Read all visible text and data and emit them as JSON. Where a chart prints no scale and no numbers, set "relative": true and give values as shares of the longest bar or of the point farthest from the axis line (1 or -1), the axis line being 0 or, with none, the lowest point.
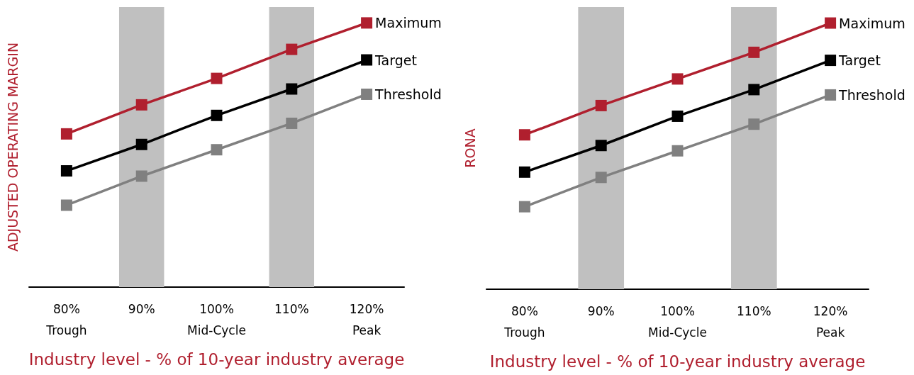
{
  "chart_data": [
    {
      "type": "line",
      "relative": true,
      "ylabel": "ADJUSTED OPERATING MARGIN",
      "xlabel": "Industry level - % of 10-year industry average",
      "x": [
        80,
        90,
        100,
        110,
        120
      ],
      "xlim": [
        75,
        125
      ],
      "xticks": [
        {
          "value": 80,
          "label": "80%\nTrough"
        },
        {
          "value": 90,
          "label": "90%"
        },
        {
          "value": 100,
          "label": "100%\nMid-Cycle"
        },
        {
          "value": 110,
          "label": "110%"
        },
        {
          "value": 120,
          "label": "120%\nPeak"
        }
      ],
      "marker": "square",
      "line_style": "solid",
      "legend": false,
      "grid": false,
      "series": [
        {
          "name": "Maximum",
          "color": "#b01f2e",
          "values": [
            0.58,
            0.69,
            0.79,
            0.9,
            1.0
          ]
        },
        {
          "name": "Target",
          "color": "#000000",
          "values": [
            0.44,
            0.54,
            0.65,
            0.75,
            0.86
          ]
        },
        {
          "name": "Threshold",
          "color": "#808080",
          "values": [
            0.31,
            0.42,
            0.52,
            0.62,
            0.73
          ]
        }
      ],
      "bands": [
        {
          "axis": "x",
          "from": 87,
          "to": 93,
          "color": "#c0c0c0"
        },
        {
          "axis": "x",
          "from": 107,
          "to": 113,
          "color": "#c0c0c0"
        }
      ]
    },
    {
      "type": "line",
      "relative": true,
      "ylabel": "RONA",
      "xlabel": "Industry level - % of 10-year industry average",
      "x": [
        80,
        90,
        100,
        110,
        120
      ],
      "xlim": [
        75,
        125
      ],
      "xticks": [
        {
          "value": 80,
          "label": "80%\nTrough"
        },
        {
          "value": 90,
          "label": "90%"
        },
        {
          "value": 100,
          "label": "100%\nMid-Cycle"
        },
        {
          "value": 110,
          "label": "110%"
        },
        {
          "value": 120,
          "label": "120%\nPeak"
        }
      ],
      "marker": "square",
      "line_style": "solid",
      "legend": false,
      "grid": false,
      "series": [
        {
          "name": "Maximum",
          "color": "#b01f2e",
          "values": [
            0.58,
            0.69,
            0.79,
            0.89,
            1.0
          ]
        },
        {
          "name": "Target",
          "color": "#000000",
          "values": [
            0.44,
            0.54,
            0.65,
            0.75,
            0.86
          ]
        },
        {
          "name": "Threshold",
          "color": "#808080",
          "values": [
            0.31,
            0.42,
            0.52,
            0.62,
            0.73
          ]
        }
      ],
      "bands": [
        {
          "axis": "x",
          "from": 87,
          "to": 93,
          "color": "#c0c0c0"
        },
        {
          "axis": "x",
          "from": 107,
          "to": 113,
          "color": "#c0c0c0"
        }
      ]
    }
  ]
}
